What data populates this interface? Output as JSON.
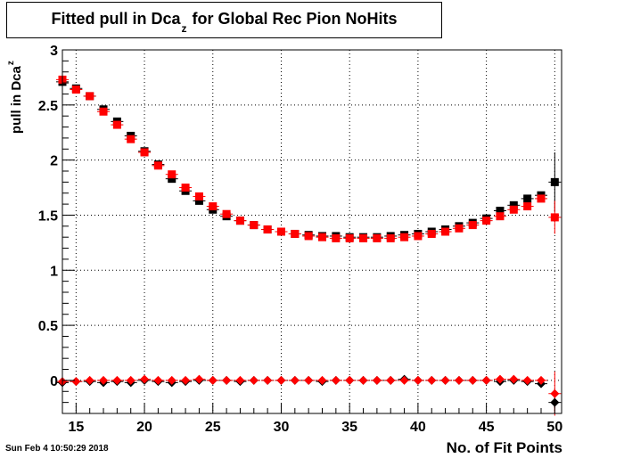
{
  "header": {
    "title_main": "Fitted pull in Dca",
    "title_sub": "z",
    "title_rest": "for Global Rec Pion NoHits"
  },
  "timestamp": "Sun Feb  4 10:50:29 2018",
  "colors": {
    "series_black": "#000000",
    "series_red": "#ff0000",
    "grid": "#000000"
  },
  "chart_data": {
    "type": "scatter",
    "title": "Fitted pull in Dca_z for Global Rec Pion NoHits",
    "xlabel": "No. of Fit Points",
    "ylabel_main": "pull in Dca",
    "ylabel_sub": "z",
    "xlim": [
      14,
      50.5
    ],
    "ylim": [
      -0.3,
      3.0
    ],
    "xticks": [
      15,
      20,
      25,
      30,
      35,
      40,
      45,
      50
    ],
    "yticks": [
      0,
      0.5,
      1,
      1.5,
      2,
      2.5,
      3
    ],
    "ytick_labels": [
      "0",
      "0.5",
      "1",
      "1.5",
      "2",
      "2.5",
      "3"
    ],
    "grid": true,
    "series": [
      {
        "marker": "square",
        "color": "#000000",
        "x": [
          14,
          15,
          16,
          17,
          18,
          19,
          20,
          21,
          22,
          23,
          24,
          25,
          26,
          27,
          28,
          29,
          30,
          31,
          32,
          33,
          34,
          35,
          36,
          37,
          38,
          39,
          40,
          41,
          42,
          43,
          44,
          45,
          46,
          47,
          48,
          49,
          50
        ],
        "y": [
          2.71,
          2.65,
          2.58,
          2.46,
          2.35,
          2.22,
          2.08,
          1.96,
          1.83,
          1.72,
          1.63,
          1.55,
          1.49,
          1.45,
          1.41,
          1.37,
          1.35,
          1.33,
          1.32,
          1.31,
          1.31,
          1.3,
          1.3,
          1.3,
          1.31,
          1.32,
          1.33,
          1.35,
          1.37,
          1.4,
          1.43,
          1.47,
          1.54,
          1.59,
          1.65,
          1.68,
          1.8
        ],
        "yerr": [
          0.02,
          0.02,
          0.02,
          0.02,
          0.02,
          0.02,
          0.02,
          0.02,
          0.02,
          0.02,
          0.02,
          0.02,
          0.02,
          0.02,
          0.02,
          0.02,
          0.02,
          0.02,
          0.02,
          0.02,
          0.02,
          0.02,
          0.02,
          0.02,
          0.02,
          0.02,
          0.02,
          0.02,
          0.02,
          0.02,
          0.02,
          0.02,
          0.02,
          0.02,
          0.02,
          0.02,
          0.27
        ]
      },
      {
        "marker": "square",
        "color": "#ff0000",
        "x": [
          14,
          15,
          16,
          17,
          18,
          19,
          20,
          21,
          22,
          23,
          24,
          25,
          26,
          27,
          28,
          29,
          30,
          31,
          32,
          33,
          34,
          35,
          36,
          37,
          38,
          39,
          40,
          41,
          42,
          43,
          44,
          45,
          46,
          47,
          48,
          49,
          50
        ],
        "y": [
          2.73,
          2.64,
          2.58,
          2.44,
          2.32,
          2.19,
          2.07,
          1.95,
          1.87,
          1.75,
          1.67,
          1.58,
          1.51,
          1.45,
          1.41,
          1.37,
          1.35,
          1.33,
          1.31,
          1.3,
          1.29,
          1.29,
          1.29,
          1.29,
          1.29,
          1.3,
          1.31,
          1.33,
          1.35,
          1.38,
          1.41,
          1.45,
          1.49,
          1.55,
          1.58,
          1.65,
          1.48
        ],
        "yerr": [
          0.02,
          0.02,
          0.02,
          0.02,
          0.02,
          0.02,
          0.02,
          0.02,
          0.02,
          0.02,
          0.02,
          0.02,
          0.02,
          0.02,
          0.02,
          0.02,
          0.02,
          0.02,
          0.02,
          0.02,
          0.02,
          0.02,
          0.02,
          0.02,
          0.02,
          0.02,
          0.02,
          0.02,
          0.02,
          0.02,
          0.02,
          0.02,
          0.02,
          0.02,
          0.02,
          0.02,
          0.15
        ]
      },
      {
        "marker": "diamond",
        "color": "#000000",
        "x": [
          14,
          15,
          16,
          17,
          18,
          19,
          20,
          21,
          22,
          23,
          24,
          25,
          26,
          27,
          28,
          29,
          30,
          31,
          32,
          33,
          34,
          35,
          36,
          37,
          38,
          39,
          40,
          41,
          42,
          43,
          44,
          45,
          46,
          47,
          48,
          49,
          50
        ],
        "y": [
          -0.02,
          -0.01,
          -0.01,
          -0.02,
          -0.01,
          -0.02,
          0.0,
          -0.01,
          -0.02,
          -0.01,
          0.0,
          0.0,
          0.0,
          -0.01,
          0.0,
          0.0,
          0.0,
          0.0,
          0.0,
          -0.01,
          0.0,
          0.0,
          0.0,
          0.0,
          0.0,
          0.01,
          0.0,
          0.0,
          0.0,
          0.0,
          0.0,
          0.0,
          -0.01,
          0.0,
          -0.01,
          -0.03,
          -0.2
        ],
        "yerr": [
          0.02,
          0.02,
          0.02,
          0.02,
          0.02,
          0.02,
          0.02,
          0.02,
          0.02,
          0.02,
          0.02,
          0.02,
          0.02,
          0.02,
          0.02,
          0.02,
          0.02,
          0.02,
          0.02,
          0.02,
          0.02,
          0.02,
          0.02,
          0.02,
          0.02,
          0.02,
          0.02,
          0.02,
          0.02,
          0.02,
          0.02,
          0.02,
          0.02,
          0.02,
          0.02,
          0.02,
          0.05
        ]
      },
      {
        "marker": "diamond",
        "color": "#ff0000",
        "x": [
          14,
          15,
          16,
          17,
          18,
          19,
          20,
          21,
          22,
          23,
          24,
          25,
          26,
          27,
          28,
          29,
          30,
          31,
          32,
          33,
          34,
          35,
          36,
          37,
          38,
          39,
          40,
          41,
          42,
          43,
          44,
          45,
          46,
          47,
          48,
          49,
          50
        ],
        "y": [
          -0.01,
          -0.01,
          0.0,
          0.0,
          0.0,
          0.0,
          0.01,
          0.0,
          0.0,
          0.0,
          0.01,
          0.0,
          0.0,
          0.0,
          0.0,
          0.0,
          0.0,
          0.0,
          0.0,
          0.0,
          0.0,
          0.0,
          0.0,
          0.0,
          0.0,
          0.0,
          0.0,
          0.0,
          0.0,
          0.0,
          0.0,
          0.0,
          0.01,
          0.01,
          0.0,
          0.0,
          -0.12
        ],
        "yerr": [
          0.02,
          0.02,
          0.02,
          0.02,
          0.02,
          0.02,
          0.02,
          0.02,
          0.02,
          0.02,
          0.02,
          0.02,
          0.02,
          0.02,
          0.02,
          0.02,
          0.02,
          0.02,
          0.02,
          0.02,
          0.02,
          0.02,
          0.02,
          0.02,
          0.02,
          0.02,
          0.02,
          0.02,
          0.02,
          0.02,
          0.02,
          0.02,
          0.02,
          0.02,
          0.02,
          0.02,
          0.2
        ]
      }
    ]
  }
}
